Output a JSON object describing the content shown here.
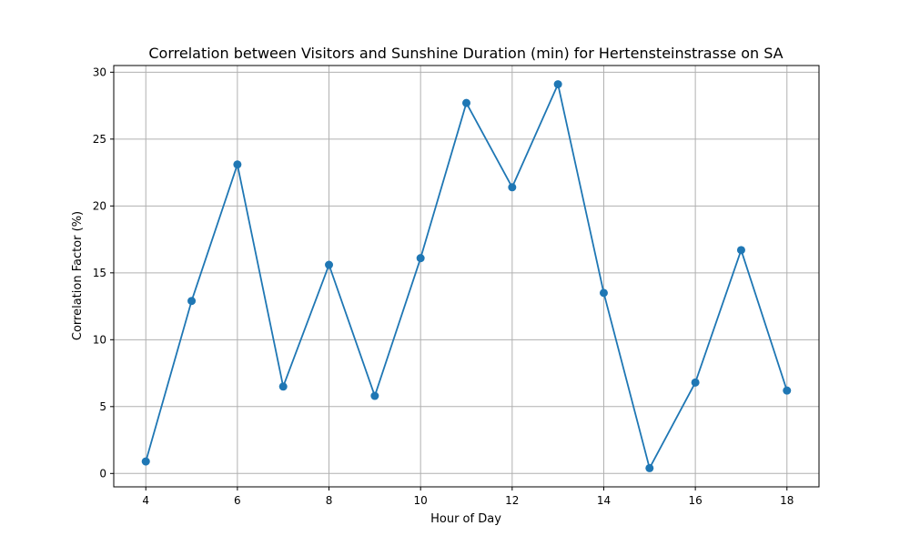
{
  "chart_data": {
    "type": "line",
    "title": "Correlation between Visitors and Sunshine Duration (min) for Hertensteinstrasse on SA",
    "xlabel": "Hour of Day",
    "ylabel": "Correlation Factor (%)",
    "x": [
      4,
      5,
      6,
      7,
      8,
      9,
      10,
      11,
      12,
      13,
      14,
      15,
      16,
      17,
      18
    ],
    "series": [
      {
        "values": [
          0.9,
          12.9,
          23.1,
          6.5,
          15.6,
          5.8,
          16.1,
          27.7,
          21.4,
          29.1,
          13.5,
          0.4,
          6.8,
          16.7,
          6.2
        ],
        "color": "#1f77b4",
        "marker": "circle"
      }
    ],
    "xlim": [
      3.3,
      18.7
    ],
    "ylim": [
      -1.0,
      30.5
    ],
    "xticks": [
      4,
      6,
      8,
      10,
      12,
      14,
      16,
      18
    ],
    "yticks": [
      0,
      5,
      10,
      15,
      20,
      25,
      30
    ],
    "grid": true,
    "legend": "none"
  }
}
